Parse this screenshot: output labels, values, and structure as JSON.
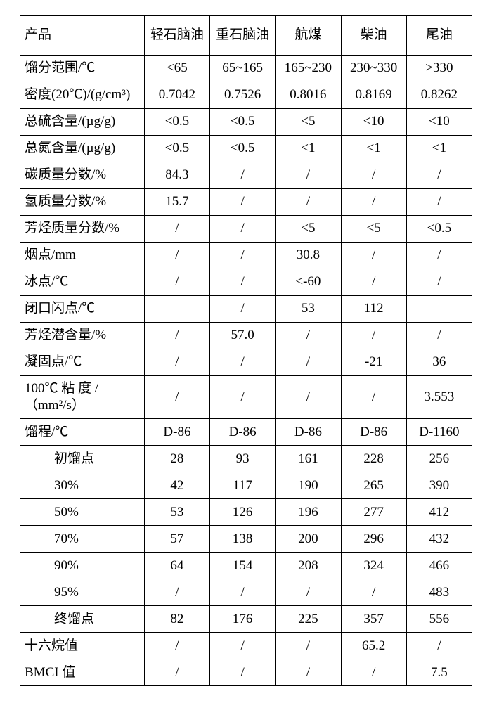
{
  "table": {
    "border_color": "#000000",
    "background_color": "#ffffff",
    "text_color": "#000000",
    "font_size_pt": 14,
    "header": {
      "label": "产品",
      "cols": [
        "轻石脑油",
        "重石脑油",
        "航煤",
        "柴油",
        "尾油"
      ]
    },
    "rows": [
      {
        "label": "馏分范围/℃",
        "vals": [
          "<65",
          "65~165",
          "165~230",
          "230~330",
          ">330"
        ]
      },
      {
        "label": "密度(20℃)/(g/cm³)",
        "vals": [
          "0.7042",
          "0.7526",
          "0.8016",
          "0.8169",
          "0.8262"
        ]
      },
      {
        "label": "总硫含量/(µg/g)",
        "vals": [
          "<0.5",
          "<0.5",
          "<5",
          "<10",
          "<10"
        ]
      },
      {
        "label": "总氮含量/(µg/g)",
        "vals": [
          "<0.5",
          "<0.5",
          "<1",
          "<1",
          "<1"
        ]
      },
      {
        "label": "碳质量分数/%",
        "vals": [
          "84.3",
          "/",
          "/",
          "/",
          "/"
        ]
      },
      {
        "label": "氢质量分数/%",
        "vals": [
          "15.7",
          "/",
          "/",
          "/",
          "/"
        ]
      },
      {
        "label": "芳烃质量分数/%",
        "vals": [
          "/",
          "/",
          "<5",
          "<5",
          "<0.5"
        ]
      },
      {
        "label": "烟点/mm",
        "vals": [
          "/",
          "/",
          "30.8",
          "/",
          "/"
        ]
      },
      {
        "label": "冰点/℃",
        "vals": [
          "/",
          "/",
          "<-60",
          "/",
          "/"
        ]
      },
      {
        "label": "闭口闪点/℃",
        "vals": [
          "",
          "/",
          "53",
          "112",
          ""
        ]
      },
      {
        "label": "芳烃潜含量/%",
        "vals": [
          "/",
          "57.0",
          "/",
          "/",
          "/"
        ]
      },
      {
        "label": "凝固点/℃",
        "vals": [
          "/",
          "/",
          "/",
          "-21",
          "36"
        ]
      },
      {
        "label": "100℃ 粘 度 /（mm²/s）",
        "vals": [
          "/",
          "/",
          "/",
          "/",
          "3.553"
        ],
        "tall": true
      },
      {
        "label": "馏程/℃",
        "vals": [
          "D-86",
          "D-86",
          "D-86",
          "D-86",
          "D-1160"
        ]
      },
      {
        "label": "初馏点",
        "indent": true,
        "vals": [
          "28",
          "93",
          "161",
          "228",
          "256"
        ]
      },
      {
        "label": "30%",
        "indent": true,
        "vals": [
          "42",
          "117",
          "190",
          "265",
          "390"
        ]
      },
      {
        "label": "50%",
        "indent": true,
        "vals": [
          "53",
          "126",
          "196",
          "277",
          "412"
        ]
      },
      {
        "label": "70%",
        "indent": true,
        "vals": [
          "57",
          "138",
          "200",
          "296",
          "432"
        ]
      },
      {
        "label": "90%",
        "indent": true,
        "vals": [
          "64",
          "154",
          "208",
          "324",
          "466"
        ]
      },
      {
        "label": "95%",
        "indent": true,
        "vals": [
          "/",
          "/",
          "/",
          "/",
          "483"
        ]
      },
      {
        "label": "终馏点",
        "indent": true,
        "vals": [
          "82",
          "176",
          "225",
          "357",
          "556"
        ]
      },
      {
        "label": "十六烷值",
        "vals": [
          "/",
          "/",
          "/",
          "65.2",
          "/"
        ]
      },
      {
        "label": "BMCI 值",
        "vals": [
          "/",
          "/",
          "/",
          "/",
          "7.5"
        ]
      }
    ]
  }
}
